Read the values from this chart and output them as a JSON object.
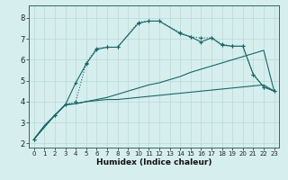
{
  "xlabel": "Humidex (Indice chaleur)",
  "background_color": "#d6eeee",
  "grid_color": "#b8d8d8",
  "line_color": "#1a6666",
  "xlim": [
    -0.5,
    23.5
  ],
  "ylim": [
    1.8,
    8.6
  ],
  "xticks": [
    0,
    1,
    2,
    3,
    4,
    5,
    6,
    7,
    8,
    9,
    10,
    11,
    12,
    13,
    14,
    15,
    16,
    17,
    18,
    19,
    20,
    21,
    22,
    23
  ],
  "yticks": [
    2,
    3,
    4,
    5,
    6,
    7,
    8
  ],
  "series": [
    {
      "x": [
        0,
        1,
        2,
        3,
        4,
        5,
        6,
        7,
        8,
        9,
        10,
        11,
        12,
        13,
        14,
        15,
        16,
        17,
        18,
        19,
        20,
        21,
        22,
        23
      ],
      "y": [
        2.2,
        2.85,
        3.35,
        3.85,
        3.9,
        4.0,
        4.05,
        4.1,
        4.1,
        4.15,
        4.2,
        4.25,
        4.3,
        4.35,
        4.4,
        4.45,
        4.5,
        4.55,
        4.6,
        4.65,
        4.7,
        4.75,
        4.8,
        4.5
      ],
      "linestyle": "-",
      "marker": null
    },
    {
      "x": [
        0,
        1,
        2,
        3,
        4,
        5,
        6,
        7,
        8,
        9,
        10,
        11,
        12,
        13,
        14,
        15,
        16,
        17,
        18,
        19,
        20,
        21,
        22,
        23
      ],
      "y": [
        2.2,
        2.85,
        3.35,
        3.85,
        3.9,
        4.0,
        4.1,
        4.2,
        4.35,
        4.5,
        4.65,
        4.8,
        4.9,
        5.05,
        5.2,
        5.4,
        5.55,
        5.7,
        5.85,
        6.0,
        6.15,
        6.3,
        6.45,
        4.5
      ],
      "linestyle": "-",
      "marker": null
    },
    {
      "x": [
        0,
        2,
        3,
        4,
        5,
        6,
        7,
        8,
        10,
        11,
        12,
        14,
        15,
        16,
        17,
        18,
        19,
        20,
        21,
        22,
        23
      ],
      "y": [
        2.2,
        3.35,
        3.85,
        4.9,
        5.8,
        6.5,
        6.6,
        6.6,
        7.75,
        7.85,
        7.85,
        7.25,
        7.1,
        6.85,
        7.05,
        6.7,
        6.65,
        6.65,
        5.3,
        4.7,
        4.5
      ],
      "linestyle": "-",
      "marker": "+"
    },
    {
      "x": [
        0,
        2,
        3,
        4,
        5,
        6,
        7,
        8,
        10,
        11,
        12,
        14,
        15,
        16,
        17,
        18,
        19,
        20,
        21,
        22,
        23
      ],
      "y": [
        2.2,
        3.35,
        3.85,
        4.0,
        5.85,
        6.55,
        6.6,
        6.6,
        7.8,
        7.85,
        7.85,
        7.3,
        7.1,
        7.05,
        7.05,
        6.75,
        6.65,
        6.65,
        5.3,
        4.7,
        4.5
      ],
      "linestyle": ":",
      "marker": "+"
    }
  ]
}
